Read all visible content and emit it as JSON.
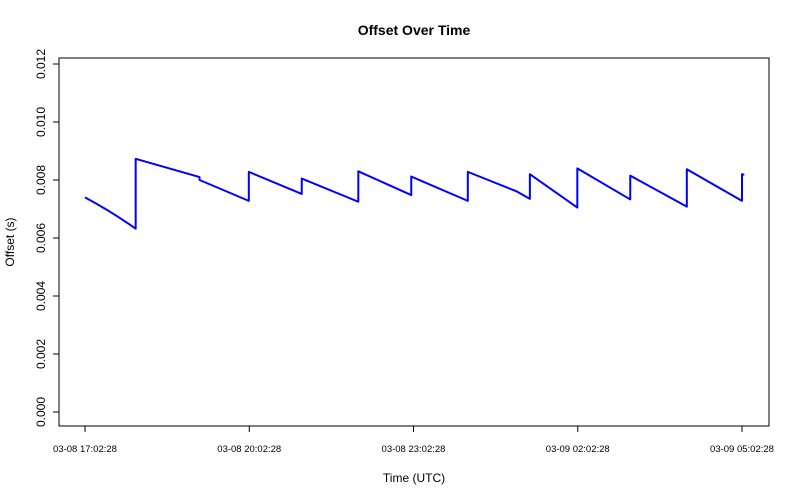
{
  "chart_data": {
    "type": "line",
    "title": "Offset Over Time",
    "xlabel": "Time (UTC)",
    "ylabel": "Offset (s)",
    "ylim": [
      0,
      0.012
    ],
    "y_ticks": [
      "0.000",
      "0.002",
      "0.004",
      "0.006",
      "0.008",
      "0.010",
      "0.012"
    ],
    "x_ticks": [
      "03-08 17:02:28",
      "03-08 20:02:28",
      "03-08 23:02:28",
      "03-09 02:02:28",
      "03-09 05:02:28"
    ],
    "grid": false,
    "legend": "none",
    "series": [
      {
        "color": "#0000ff",
        "points": [
          [
            "03-08 17:02:28",
            0.0074
          ],
          [
            "03-08 17:32",
            0.0069
          ],
          [
            "03-08 18:02",
            0.0066
          ],
          [
            "03-08 17:58",
            0.00632
          ],
          [
            "03-08 17:58",
            0.00873
          ],
          [
            "03-08 19:08",
            0.0081
          ],
          [
            "03-08 19:08",
            0.008
          ],
          [
            "03-08 20:02",
            0.00728
          ],
          [
            "03-08 20:02",
            0.00828
          ],
          [
            "03-08 21:00",
            0.00752
          ],
          [
            "03-08 21:00",
            0.00805
          ],
          [
            "03-08 22:02",
            0.00725
          ],
          [
            "03-08 22:02",
            0.0083
          ],
          [
            "03-08 23:00",
            0.00748
          ],
          [
            "03-08 23:00",
            0.00812
          ],
          [
            "03-09 00:02",
            0.00728
          ],
          [
            "03-09 00:02",
            0.00828
          ],
          [
            "03-09 00:56",
            0.0076
          ],
          [
            "03-09 01:10",
            0.00735
          ],
          [
            "03-09 01:10",
            0.0082
          ],
          [
            "03-09 02:02",
            0.00705
          ],
          [
            "03-09 02:02",
            0.0084
          ],
          [
            "03-09 03:00",
            0.00733
          ],
          [
            "03-09 03:00",
            0.00815
          ],
          [
            "03-09 04:02",
            0.00708
          ],
          [
            "03-09 04:02",
            0.00837
          ],
          [
            "03-09 05:02:28",
            0.00728
          ],
          [
            "03-09 05:02:28",
            0.0082
          ],
          [
            "03-09 05:05",
            0.00818
          ]
        ]
      }
    ]
  }
}
